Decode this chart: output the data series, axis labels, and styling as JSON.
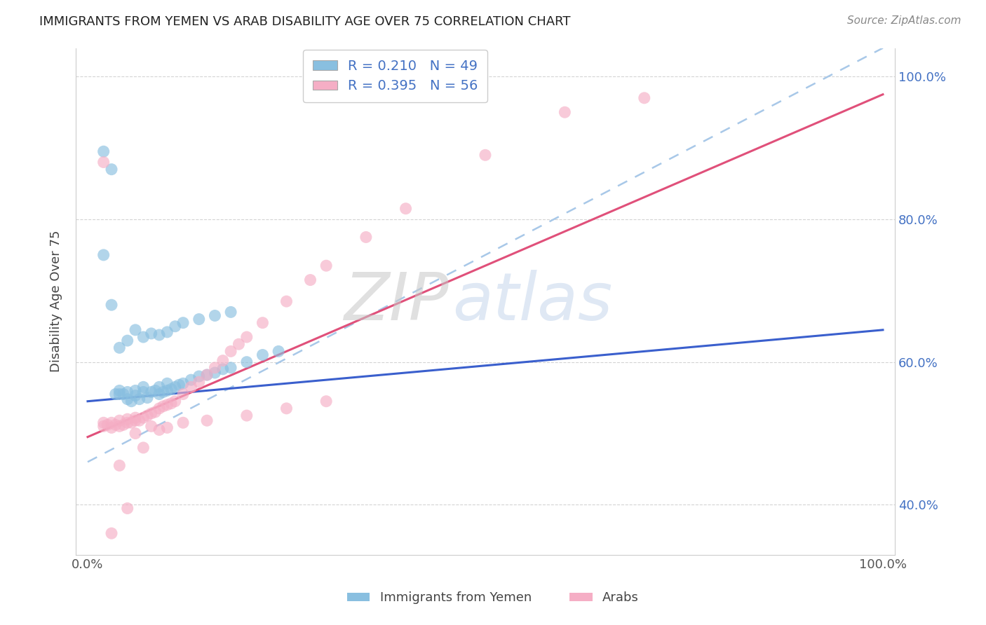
{
  "title": "IMMIGRANTS FROM YEMEN VS ARAB DISABILITY AGE OVER 75 CORRELATION CHART",
  "source_text": "Source: ZipAtlas.com",
  "ylabel": "Disability Age Over 75",
  "legend_label1": "Immigrants from Yemen",
  "legend_label2": "Arabs",
  "R1": 0.21,
  "N1": 49,
  "R2": 0.395,
  "N2": 56,
  "color_blue": "#89bfe0",
  "color_pink": "#f5aec5",
  "line_color_blue": "#3a5fcd",
  "line_color_pink": "#e0507a",
  "dashed_line_color": "#a8c8e8",
  "background_color": "#ffffff",
  "grid_color": "#d0d0d0",
  "blue_intercept": 0.545,
  "blue_slope": 0.1,
  "pink_intercept": 0.495,
  "pink_slope": 0.48,
  "dash_intercept": 0.46,
  "dash_slope": 0.58,
  "blue_x": [
    0.02,
    0.03,
    0.035,
    0.04,
    0.04,
    0.045,
    0.05,
    0.05,
    0.055,
    0.06,
    0.06,
    0.065,
    0.07,
    0.07,
    0.075,
    0.08,
    0.085,
    0.09,
    0.09,
    0.095,
    0.1,
    0.1,
    0.105,
    0.11,
    0.115,
    0.12,
    0.13,
    0.14,
    0.15,
    0.16,
    0.17,
    0.18,
    0.2,
    0.22,
    0.24,
    0.02,
    0.03,
    0.04,
    0.05,
    0.06,
    0.07,
    0.08,
    0.09,
    0.1,
    0.11,
    0.12,
    0.14,
    0.16,
    0.18
  ],
  "blue_y": [
    0.895,
    0.87,
    0.555,
    0.555,
    0.56,
    0.555,
    0.548,
    0.558,
    0.545,
    0.553,
    0.56,
    0.548,
    0.558,
    0.565,
    0.55,
    0.558,
    0.56,
    0.555,
    0.565,
    0.558,
    0.56,
    0.57,
    0.562,
    0.565,
    0.568,
    0.57,
    0.575,
    0.58,
    0.582,
    0.585,
    0.59,
    0.592,
    0.6,
    0.61,
    0.615,
    0.75,
    0.68,
    0.62,
    0.63,
    0.645,
    0.635,
    0.64,
    0.638,
    0.642,
    0.65,
    0.655,
    0.66,
    0.665,
    0.67
  ],
  "pink_x": [
    0.02,
    0.02,
    0.025,
    0.03,
    0.03,
    0.035,
    0.04,
    0.04,
    0.045,
    0.05,
    0.05,
    0.055,
    0.06,
    0.06,
    0.065,
    0.07,
    0.075,
    0.08,
    0.085,
    0.09,
    0.095,
    0.1,
    0.105,
    0.11,
    0.12,
    0.13,
    0.14,
    0.15,
    0.16,
    0.17,
    0.18,
    0.19,
    0.2,
    0.22,
    0.25,
    0.28,
    0.3,
    0.35,
    0.4,
    0.5,
    0.6,
    0.7,
    0.02,
    0.03,
    0.04,
    0.05,
    0.06,
    0.07,
    0.08,
    0.09,
    0.1,
    0.12,
    0.15,
    0.2,
    0.25,
    0.3
  ],
  "pink_y": [
    0.515,
    0.51,
    0.512,
    0.508,
    0.515,
    0.512,
    0.51,
    0.518,
    0.512,
    0.515,
    0.52,
    0.515,
    0.518,
    0.522,
    0.518,
    0.522,
    0.525,
    0.528,
    0.53,
    0.535,
    0.538,
    0.54,
    0.542,
    0.545,
    0.555,
    0.565,
    0.572,
    0.582,
    0.592,
    0.602,
    0.615,
    0.625,
    0.635,
    0.655,
    0.685,
    0.715,
    0.735,
    0.775,
    0.815,
    0.89,
    0.95,
    0.97,
    0.88,
    0.36,
    0.455,
    0.395,
    0.5,
    0.48,
    0.51,
    0.505,
    0.508,
    0.515,
    0.518,
    0.525,
    0.535,
    0.545
  ]
}
